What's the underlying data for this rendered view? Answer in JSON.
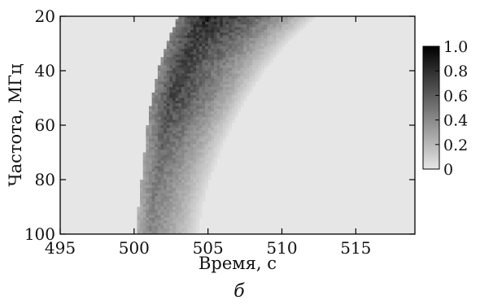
{
  "chart_data": {
    "type": "heatmap",
    "title": "",
    "xlabel": "Время, с",
    "ylabel": "Частота, МГц",
    "panel_label": "б",
    "xlim": [
      495,
      519
    ],
    "ylim": [
      100,
      20
    ],
    "y_inverted": true,
    "x_ticks": [
      495,
      500,
      505,
      510,
      515
    ],
    "y_ticks": [
      20,
      40,
      60,
      80,
      100
    ],
    "colorbar": {
      "range": [
        0,
        1
      ],
      "ticks": [
        "0",
        "0.2",
        "0.4",
        "0.6",
        "0.8",
        "1.0"
      ],
      "colormap": "gray_reversed",
      "min_color": "#e6e6e6",
      "max_color": "#000000"
    },
    "background_color": "#e6e6e6",
    "grid": false,
    "signal": {
      "description": "dispersed pulse band",
      "onset_time_by_frequency": [
        {
          "freq": 20,
          "time": 503.0
        },
        {
          "freq": 30,
          "time": 502.2
        },
        {
          "freq": 40,
          "time": 501.6
        },
        {
          "freq": 50,
          "time": 501.2
        },
        {
          "freq": 60,
          "time": 500.9
        },
        {
          "freq": 70,
          "time": 500.7
        },
        {
          "freq": 80,
          "time": 500.5
        },
        {
          "freq": 90,
          "time": 500.3
        },
        {
          "freq": 100,
          "time": 500.2
        }
      ],
      "end_time_by_frequency": [
        {
          "freq": 20,
          "time": 512.5
        },
        {
          "freq": 30,
          "time": 510.5
        },
        {
          "freq": 40,
          "time": 509.0
        },
        {
          "freq": 50,
          "time": 507.8
        },
        {
          "freq": 60,
          "time": 506.8
        },
        {
          "freq": 70,
          "time": 506.0
        },
        {
          "freq": 80,
          "time": 505.3
        },
        {
          "freq": 90,
          "time": 504.8
        },
        {
          "freq": 100,
          "time": 504.5
        }
      ],
      "peak_intensity_by_frequency": [
        {
          "freq": 20,
          "value": 0.95
        },
        {
          "freq": 30,
          "value": 0.85
        },
        {
          "freq": 40,
          "value": 0.8
        },
        {
          "freq": 50,
          "value": 0.8
        },
        {
          "freq": 60,
          "value": 0.7
        },
        {
          "freq": 70,
          "value": 0.6
        },
        {
          "freq": 80,
          "value": 0.55
        },
        {
          "freq": 90,
          "value": 0.5
        },
        {
          "freq": 100,
          "value": 0.45
        }
      ]
    }
  }
}
